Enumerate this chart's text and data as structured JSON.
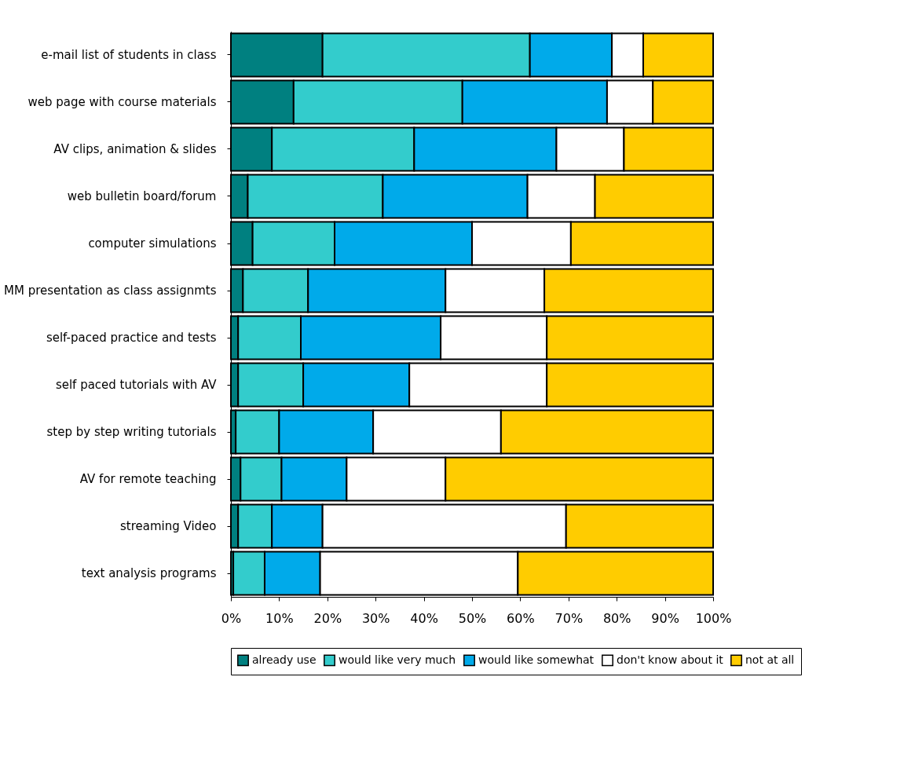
{
  "chart_data": {
    "type": "bar",
    "orientation": "horizontal",
    "stacked": true,
    "categories": [
      "e-mail list of students in class",
      "web page with course materials",
      "AV clips, animation & slides",
      "web bulletin board/forum",
      "computer simulations",
      "MM presentation as class assignmts",
      "self-paced practice and tests",
      "self paced tutorials with AV",
      "step by step writing tutorials",
      "AV for remote teaching",
      "streaming Video",
      "text analysis programs"
    ],
    "series": [
      {
        "name": "already use",
        "color": "#008080",
        "values": [
          19,
          13,
          8.5,
          3.5,
          4.5,
          2.5,
          1.5,
          1.5,
          1,
          2,
          1.5,
          0.5
        ]
      },
      {
        "name": "would like very much",
        "color": "#33cccc",
        "values": [
          43,
          35,
          29.5,
          28,
          17,
          13.5,
          13,
          13.5,
          9,
          8.5,
          7,
          6.5
        ]
      },
      {
        "name": "would like somewhat",
        "color": "#00aaea",
        "values": [
          17,
          30,
          29.5,
          30,
          28.5,
          28.5,
          29,
          22,
          19.5,
          13.5,
          10.5,
          11.5
        ]
      },
      {
        "name": "don't know about it",
        "color": "#ffffff",
        "values": [
          6.5,
          9.5,
          14,
          14,
          20.5,
          20.5,
          22,
          28.5,
          26.5,
          20.5,
          50.5,
          41
        ]
      },
      {
        "name": "not at all",
        "color": "#ffcc00",
        "values": [
          14.5,
          12.5,
          18.5,
          24.5,
          29.5,
          35,
          34.5,
          34.5,
          44,
          55.5,
          30.5,
          40.5
        ]
      }
    ],
    "xlim": [
      0,
      100
    ],
    "xticks": [
      {
        "value": 0,
        "label": "0%"
      },
      {
        "value": 10,
        "label": "10%"
      },
      {
        "value": 20,
        "label": "20%"
      },
      {
        "value": 30,
        "label": "30%"
      },
      {
        "value": 40,
        "label": "40%"
      },
      {
        "value": 50,
        "label": "50%"
      },
      {
        "value": 60,
        "label": "60%"
      },
      {
        "value": 70,
        "label": "70%"
      },
      {
        "value": 80,
        "label": "80%"
      },
      {
        "value": 90,
        "label": "90%"
      },
      {
        "value": 100,
        "label": "100%"
      }
    ],
    "grid": false,
    "legend": "bottom"
  }
}
